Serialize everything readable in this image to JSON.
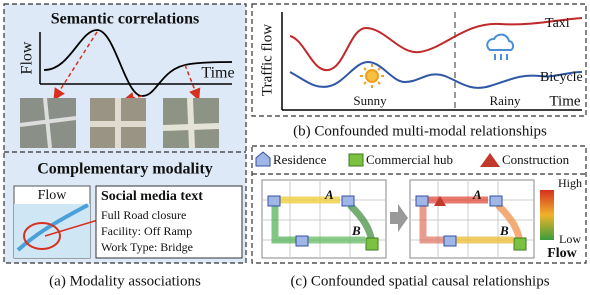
{
  "panel_a": {
    "top": {
      "title": "Semantic correlations",
      "y_axis": "Flow",
      "x_axis": "Time"
    },
    "bottom": {
      "title": "Complementary modality",
      "map_label": "Flow",
      "text_box": {
        "title": "Social media text",
        "lines": [
          "Full Road closure",
          "Facility: Off Ramp",
          "Work Type: Bridge"
        ]
      }
    },
    "caption": "(a) Modality associations"
  },
  "panel_b": {
    "y_axis": "Traffic flow",
    "series": [
      "Taxi",
      "Bicycle"
    ],
    "conditions": [
      "Sunny",
      "Rainy"
    ],
    "x_axis": "Time",
    "caption": "(b) Confounded multi-modal relationships"
  },
  "panel_c": {
    "legend": [
      "Residence",
      "Commercial hub",
      "Construction"
    ],
    "nodes": [
      "A",
      "B"
    ],
    "colorbar": {
      "high": "High",
      "low": "Low",
      "title": "Flow"
    },
    "caption": "(c) Confounded spatial causal relationships"
  }
}
